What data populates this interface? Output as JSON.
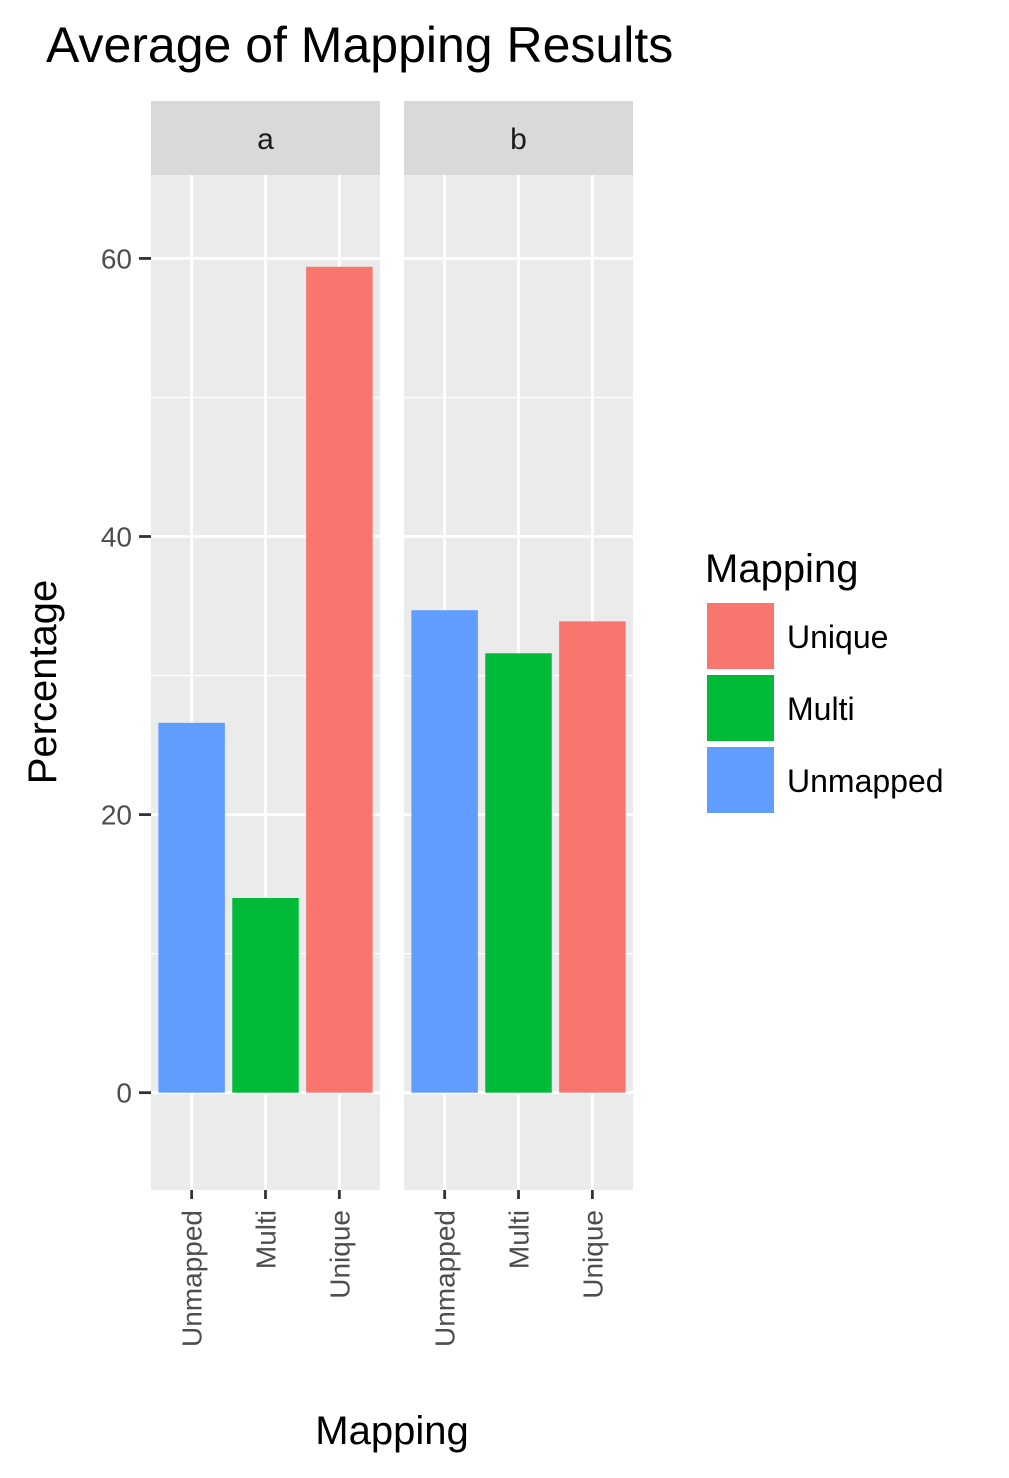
{
  "chart_data": {
    "type": "bar",
    "title": "Average of Mapping Results",
    "xlabel": "Mapping",
    "ylabel": "Percentage",
    "ylim": [
      -7,
      66
    ],
    "yticks": [
      0,
      20,
      40,
      60
    ],
    "grid": true,
    "categories": [
      "Unmapped",
      "Multi",
      "Unique"
    ],
    "facets": [
      {
        "label": "a",
        "values": [
          26.6,
          14.0,
          59.4
        ]
      },
      {
        "label": "b",
        "values": [
          34.7,
          31.6,
          33.9
        ]
      }
    ],
    "legend": {
      "title": "Mapping",
      "position": "right",
      "entries": [
        {
          "label": "Unique",
          "color": "#F8766D"
        },
        {
          "label": "Multi",
          "color": "#00BA38"
        },
        {
          "label": "Unmapped",
          "color": "#619CFF"
        }
      ]
    },
    "colors": {
      "Unique": "#F8766D",
      "Multi": "#00BA38",
      "Unmapped": "#619CFF"
    }
  }
}
